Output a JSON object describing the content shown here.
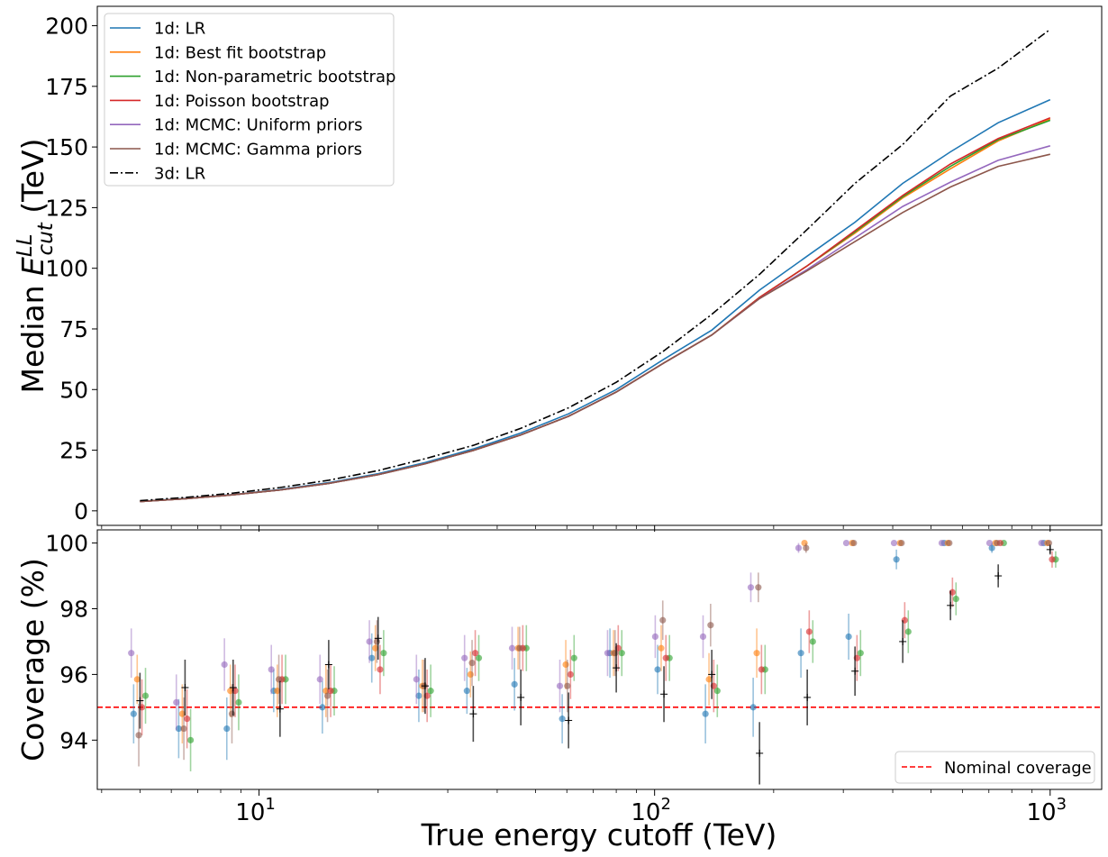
{
  "chart_data": [
    {
      "type": "line",
      "ylabel": "Median $E_{cut}^{LL}$ (TeV)",
      "ylabel_parts": {
        "base": "Median ",
        "symbol": "E",
        "sup": "LL",
        "sub": "cut",
        "unit": " (TeV)"
      },
      "xscale": "log",
      "xlim": [
        3.9,
        1350
      ],
      "ylim": [
        -6,
        208
      ],
      "yticks": [
        0,
        25,
        50,
        75,
        100,
        125,
        150,
        175,
        200
      ],
      "yticklabels": [
        "0",
        "25",
        "50",
        "75",
        "100",
        "125",
        "150",
        "175",
        "200"
      ],
      "legend_position": "top-left",
      "x": [
        5,
        6.5,
        8.6,
        11.3,
        15,
        20,
        26.3,
        34.8,
        45.9,
        60.6,
        80,
        105.6,
        139.5,
        184.2,
        243.2,
        321.1,
        424,
        559.8,
        739.2,
        1000
      ],
      "series": [
        {
          "name": "1d: LR",
          "color": "#1f77b4",
          "dash": "solid",
          "values": [
            3.9,
            5.1,
            6.7,
            8.8,
            11.6,
            15.3,
            19.9,
            25.5,
            32.1,
            40.0,
            50.0,
            62.5,
            74.5,
            91.0,
            105.0,
            119.0,
            135.0,
            148.0,
            160.0,
            169.5
          ]
        },
        {
          "name": "1d: Best fit bootstrap",
          "color": "#ff7f0e",
          "dash": "solid",
          "values": [
            3.8,
            5.0,
            6.6,
            8.6,
            11.3,
            14.9,
            19.4,
            24.9,
            31.3,
            39.0,
            49.0,
            61.0,
            72.5,
            88.0,
            101.0,
            114.5,
            129.0,
            141.0,
            152.5,
            161.5
          ]
        },
        {
          "name": "1d: Non-parametric bootstrap",
          "color": "#2ca02c",
          "dash": "solid",
          "values": [
            3.8,
            5.0,
            6.6,
            8.6,
            11.3,
            14.9,
            19.4,
            24.9,
            31.3,
            39.0,
            49.0,
            61.0,
            72.5,
            88.0,
            101.0,
            115.0,
            129.5,
            142.0,
            153.0,
            161.0
          ]
        },
        {
          "name": "1d: Poisson bootstrap",
          "color": "#d62728",
          "dash": "solid",
          "values": [
            3.8,
            5.0,
            6.6,
            8.6,
            11.3,
            14.9,
            19.4,
            24.9,
            31.3,
            39.0,
            49.0,
            61.0,
            72.5,
            88.0,
            101.0,
            115.5,
            130.0,
            143.0,
            153.5,
            162.0
          ]
        },
        {
          "name": "1d: MCMC: Uniform priors",
          "color": "#9467bd",
          "dash": "solid",
          "values": [
            3.8,
            5.0,
            6.6,
            8.6,
            11.3,
            14.9,
            19.4,
            24.9,
            31.3,
            39.0,
            49.0,
            61.0,
            72.5,
            87.5,
            99.5,
            112.5,
            125.5,
            135.5,
            144.5,
            150.5
          ]
        },
        {
          "name": "1d: MCMC: Gamma priors",
          "color": "#8c564b",
          "dash": "solid",
          "values": [
            3.8,
            5.0,
            6.6,
            8.6,
            11.3,
            14.9,
            19.4,
            24.9,
            31.3,
            39.0,
            49.0,
            61.0,
            72.5,
            87.5,
            99.0,
            111.0,
            123.0,
            133.5,
            142.0,
            147.0
          ]
        },
        {
          "name": "3d: LR",
          "color": "#000000",
          "dash": "dashdot",
          "values": [
            4.2,
            5.5,
            7.3,
            9.6,
            12.6,
            16.6,
            21.5,
            27.0,
            34.0,
            42.5,
            53.0,
            66.0,
            81.0,
            97.5,
            116.0,
            135.0,
            151.0,
            171.0,
            182.5,
            198.5
          ]
        }
      ]
    },
    {
      "type": "scatter",
      "xlabel": "True energy cutoff (TeV)",
      "ylabel": "Coverage (%)",
      "xscale": "log",
      "xlim": [
        3.9,
        1350
      ],
      "ylim": [
        92.5,
        100.4
      ],
      "yticks": [
        94,
        96,
        98,
        100
      ],
      "yticklabels": [
        "94",
        "96",
        "98",
        "100"
      ],
      "xticks": [
        10,
        100,
        1000
      ],
      "xtick_exponents": [
        "1",
        "2",
        "3"
      ],
      "xtick_base": "10",
      "legend_position": "lower-right",
      "reference_line": {
        "label": "Nominal coverage",
        "y": 95,
        "color": "#ff0000"
      },
      "x": [
        5,
        6.5,
        8.6,
        11.3,
        15,
        20,
        26.3,
        34.8,
        45.9,
        60.6,
        80,
        105.6,
        139.5,
        184.2,
        243.2,
        321.1,
        424,
        559.8,
        739.2,
        1000
      ],
      "series": [
        {
          "name": "1d: LR",
          "color": "#1f77b4",
          "values": [
            94.8,
            94.35,
            94.35,
            95.5,
            95.0,
            96.5,
            95.35,
            95.5,
            95.7,
            94.65,
            96.65,
            96.15,
            94.8,
            95.0,
            96.65,
            97.15,
            99.5,
            100,
            99.85,
            100
          ],
          "err": [
            0.9,
            0.9,
            0.95,
            0.65,
            0.8,
            0.75,
            0.8,
            0.7,
            0.8,
            0.75,
            0.75,
            0.75,
            0.9,
            0.9,
            0.75,
            0.7,
            0.3,
            0,
            0.15,
            0
          ]
        },
        {
          "name": "1d: Best fit bootstrap",
          "color": "#ff7f0e",
          "values": [
            95.85,
            94.8,
            95.5,
            95.5,
            95.5,
            96.8,
            95.65,
            96.0,
            96.8,
            96.3,
            96.65,
            96.8,
            95.85,
            96.65,
            100,
            100,
            100,
            100,
            100,
            100
          ],
          "err": [
            0.75,
            0.9,
            0.8,
            0.8,
            0.8,
            0.7,
            0.8,
            0.7,
            0.65,
            0.75,
            0.7,
            0.7,
            0.8,
            0.75,
            0,
            0,
            0,
            0,
            0,
            0
          ]
        },
        {
          "name": "1d: Non-parametric bootstrap",
          "color": "#2ca02c",
          "values": [
            95.35,
            94.0,
            95.15,
            95.85,
            95.5,
            96.65,
            95.5,
            96.5,
            96.8,
            96.5,
            96.65,
            96.5,
            95.5,
            96.15,
            97.0,
            96.65,
            97.3,
            98.3,
            100,
            99.5
          ],
          "err": [
            0.85,
            0.95,
            0.85,
            0.75,
            0.75,
            0.7,
            0.8,
            0.7,
            0.7,
            0.7,
            0.7,
            0.7,
            0.8,
            0.75,
            0.65,
            0.7,
            0.65,
            0.5,
            0,
            0.25
          ]
        },
        {
          "name": "1d: Poisson bootstrap",
          "color": "#d62728",
          "values": [
            95.0,
            94.65,
            95.5,
            95.85,
            95.5,
            96.15,
            95.35,
            96.65,
            96.8,
            96.0,
            96.8,
            96.5,
            95.65,
            96.15,
            97.3,
            96.5,
            97.65,
            98.5,
            100,
            99.5
          ],
          "err": [
            0.85,
            0.9,
            0.8,
            0.75,
            0.8,
            0.75,
            0.8,
            0.7,
            0.7,
            0.75,
            0.7,
            0.7,
            0.8,
            0.75,
            0.65,
            0.7,
            0.55,
            0.45,
            0,
            0.25
          ]
        },
        {
          "name": "1d: MCMC: Uniform priors",
          "color": "#9467bd",
          "values": [
            96.65,
            95.15,
            96.3,
            96.15,
            95.85,
            97.0,
            95.85,
            96.5,
            96.8,
            95.65,
            96.65,
            97.15,
            97.15,
            98.65,
            99.85,
            100,
            100,
            100,
            100,
            100
          ],
          "err": [
            0.75,
            0.85,
            0.8,
            0.75,
            0.75,
            0.65,
            0.75,
            0.7,
            0.65,
            0.8,
            0.7,
            0.65,
            0.65,
            0.45,
            0.15,
            0,
            0,
            0,
            0,
            0
          ]
        },
        {
          "name": "1d: MCMC: Gamma priors",
          "color": "#8c564b",
          "values": [
            94.15,
            94.35,
            94.8,
            95.85,
            95.35,
            97.0,
            95.65,
            96.35,
            96.8,
            95.65,
            96.65,
            97.65,
            97.5,
            98.65,
            99.85,
            100,
            100,
            100,
            100,
            100
          ],
          "err": [
            0.95,
            0.95,
            0.9,
            0.75,
            0.8,
            0.65,
            0.8,
            0.7,
            0.65,
            0.8,
            0.7,
            0.6,
            0.65,
            0.45,
            0.15,
            0,
            0,
            0,
            0,
            0
          ]
        },
        {
          "name": "3d: LR",
          "color": "#000000",
          "values": [
            95.2,
            95.6,
            95.6,
            94.95,
            96.3,
            97.1,
            95.65,
            94.8,
            95.3,
            94.6,
            96.2,
            95.4,
            96.0,
            93.6,
            95.3,
            96.1,
            97.0,
            98.1,
            99.0,
            99.8
          ],
          "err": [
            0.85,
            0.85,
            0.85,
            0.85,
            0.75,
            0.65,
            0.85,
            0.85,
            0.85,
            0.85,
            0.75,
            0.85,
            0.75,
            0.95,
            0.85,
            0.75,
            0.65,
            0.45,
            0.35,
            0.15
          ]
        }
      ]
    }
  ]
}
